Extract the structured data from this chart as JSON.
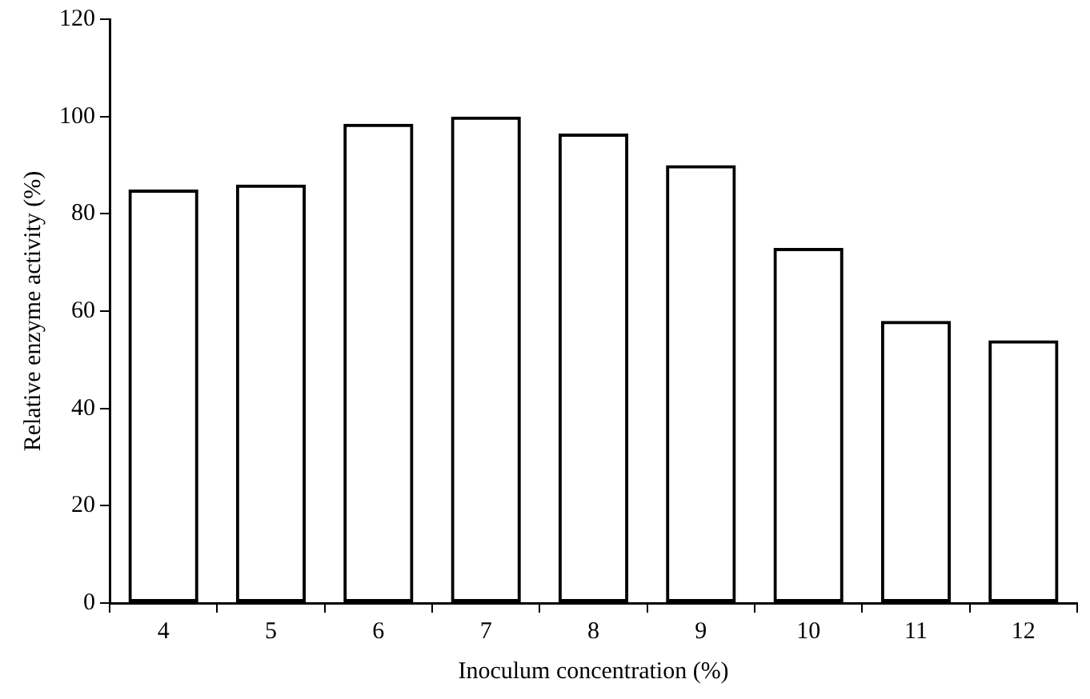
{
  "chart_data": {
    "type": "bar",
    "xlabel": "Inoculum concentration (%)",
    "ylabel": "Relative enzyme activity (%)",
    "categories": [
      "4",
      "5",
      "6",
      "7",
      "8",
      "9",
      "10",
      "11",
      "12"
    ],
    "values": [
      85,
      86,
      98.5,
      100,
      96.5,
      90,
      73,
      58,
      54
    ],
    "color": "#000000",
    "ylim": [
      0,
      120
    ],
    "yticks": [
      0,
      20,
      40,
      60,
      80,
      100,
      120
    ],
    "grid": false,
    "legend": false
  }
}
